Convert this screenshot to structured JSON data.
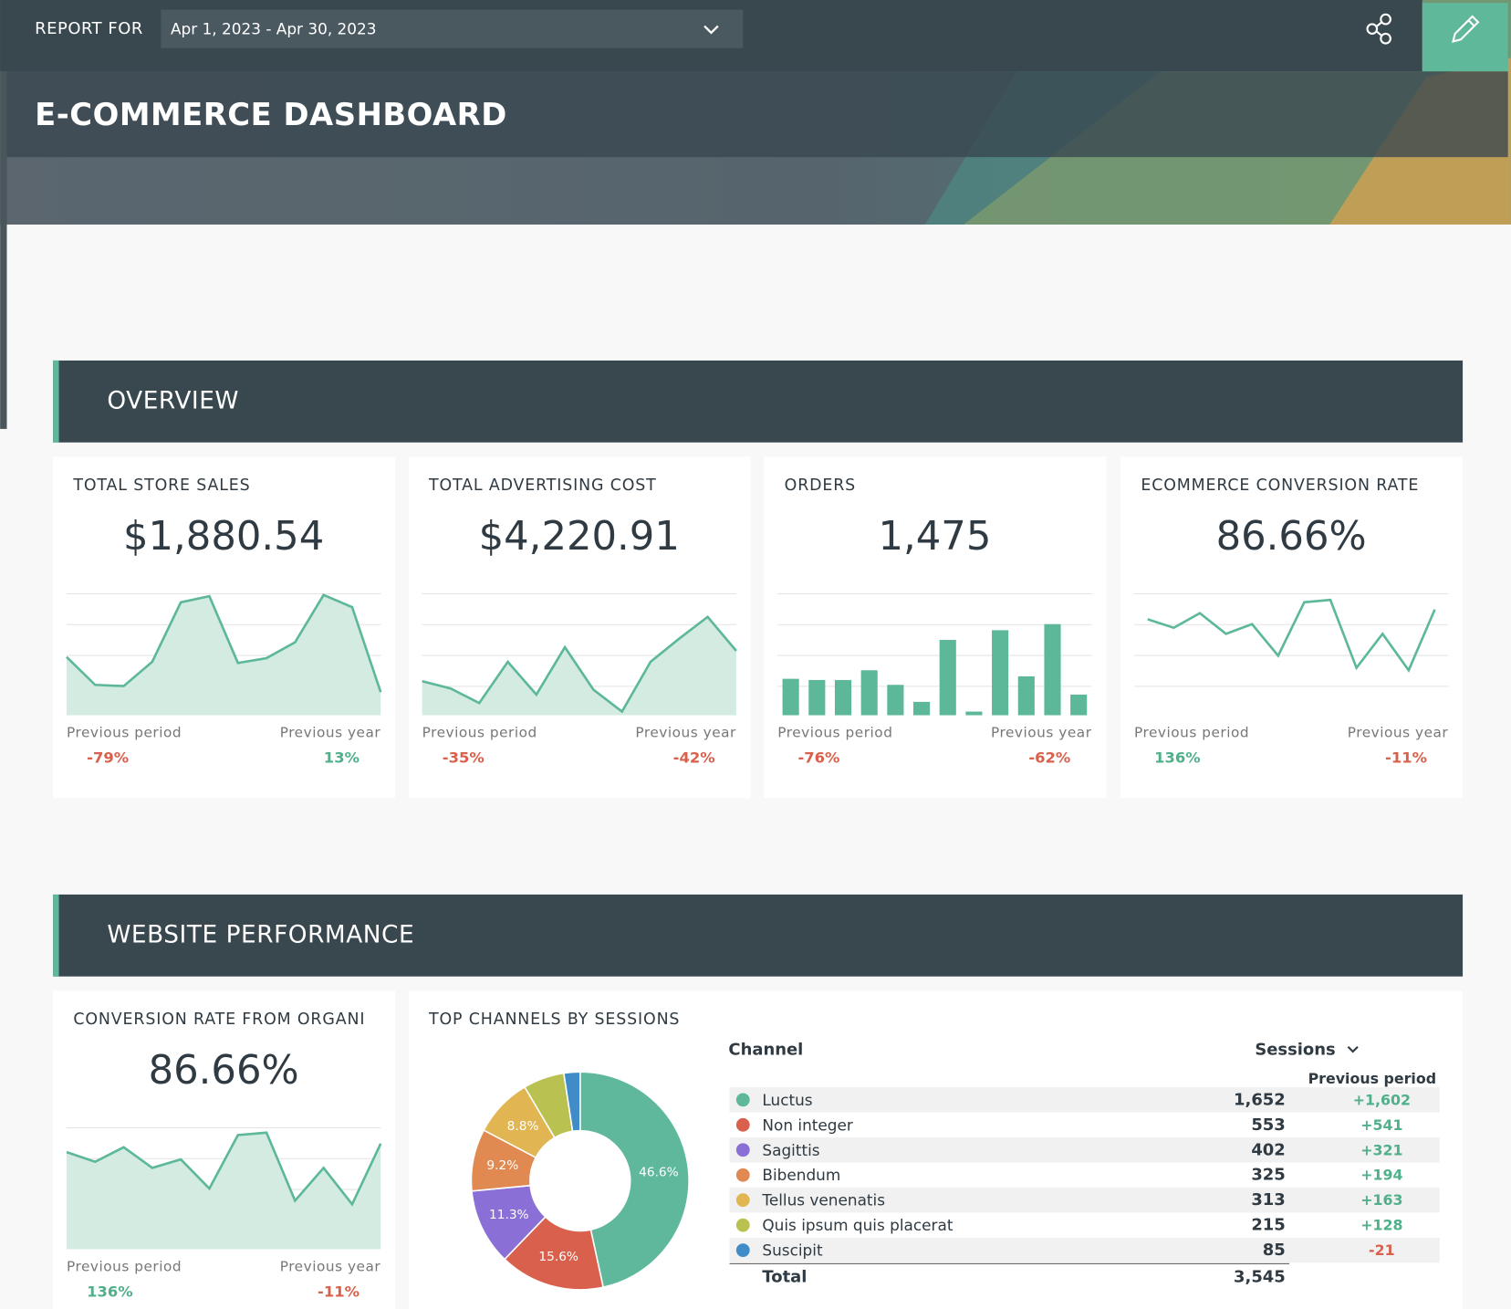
{
  "header": {
    "report_for": "REPORT FOR",
    "date_range": "Apr 1, 2023 - Apr 30, 2023",
    "title": "E-COMMERCE DASHBOARD"
  },
  "sections": [
    {
      "title": "OVERVIEW",
      "cards": [
        {
          "title": "TOTAL STORE SALES",
          "value": "$1,880.54",
          "chart": {
            "type": "area",
            "values": [
              48,
              25,
              24,
              44,
              93,
              98,
              43,
              47,
              60,
              99,
              89,
              19
            ],
            "ylim": [
              0,
              100
            ]
          },
          "previous_period_label": "Previous period",
          "previous_period": "-79%",
          "previous_year_label": "Previous year",
          "previous_year": "13%"
        },
        {
          "title": "TOTAL ADVERTISING COST",
          "value": "$4,220.91",
          "chart": {
            "type": "area",
            "values": [
              28,
              22,
              10,
              44,
              17,
              56,
              21,
              3,
              44,
              63,
              81,
              53
            ],
            "ylim": [
              0,
              100
            ]
          },
          "previous_period_label": "Previous period",
          "previous_period": "-35%",
          "previous_year_label": "Previous year",
          "previous_year": "-42%"
        },
        {
          "title": "ORDERS",
          "value": "1,475",
          "chart": {
            "type": "bar",
            "values": [
              30,
              29,
              29,
              37,
              25,
              11,
              62,
              3,
              70,
              32,
              75,
              17
            ],
            "ylim": [
              0,
              100
            ]
          },
          "previous_period_label": "Previous period",
          "previous_period": "-76%",
          "previous_year_label": "Previous year",
          "previous_year": "-62%"
        },
        {
          "title": "ECOMMERCE CONVERSION RATE",
          "value": "86.66%",
          "chart": {
            "type": "line",
            "values": [
              79,
              72,
              84,
              67,
              75,
              49,
              93,
              95,
              39,
              67,
              37,
              87
            ],
            "ylim": [
              0,
              100
            ]
          },
          "previous_period_label": "Previous period",
          "previous_period": "136%",
          "previous_year_label": "Previous year",
          "previous_year": "-11%"
        }
      ]
    },
    {
      "title": "WEBSITE PERFORMANCE",
      "cards": [
        {
          "title": "CONVERSION RATE FROM ORGANI",
          "value": "86.66%",
          "chart": {
            "type": "area",
            "values": [
              80,
              72,
              84,
              67,
              74,
              50,
              94,
              96,
              40,
              67,
              37,
              87
            ],
            "ylim": [
              0,
              100
            ]
          },
          "previous_period_label": "Previous period",
          "previous_period": "136%",
          "previous_year_label": "Previous year",
          "previous_year": "-11%"
        },
        {
          "title": "TOP CHANNELS BY SESSIONS",
          "chart": {
            "type": "pie",
            "values": [
              46.6,
              15.6,
              11.3,
              9.2,
              8.8,
              6.1,
              2.4
            ],
            "value_labels": [
              "46.6%",
              "15.6%",
              "11.3%",
              "9.2%",
              "8.8%",
              null,
              null
            ],
            "colors": [
              "#5fb89c",
              "#d9604c",
              "#8a6fd6",
              "#e08a52",
              "#e0b552",
              "#b9c151",
              "#3f8cc9"
            ]
          },
          "table": {
            "columns": [
              "Channel",
              "Sessions",
              "Previous period"
            ],
            "rows": [
              {
                "name": "Luctus",
                "color": "#5fb89c",
                "sessions": "1,652",
                "change": "+1,602"
              },
              {
                "name": "Non integer",
                "color": "#d9604c",
                "sessions": "553",
                "change": "+541"
              },
              {
                "name": "Sagittis",
                "color": "#8a6fd6",
                "sessions": "402",
                "change": "+321"
              },
              {
                "name": "Bibendum",
                "color": "#e08a52",
                "sessions": "325",
                "change": "+194"
              },
              {
                "name": "Tellus venenatis",
                "color": "#e0b552",
                "sessions": "313",
                "change": "+163"
              },
              {
                "name": "Quis ipsum quis placerat",
                "color": "#b9c151",
                "sessions": "215",
                "change": "+128"
              },
              {
                "name": "Suscipit",
                "color": "#3f8cc9",
                "sessions": "85",
                "change": "-21"
              }
            ],
            "total": {
              "label": "Total",
              "sessions": "3,545"
            }
          }
        }
      ]
    }
  ]
}
